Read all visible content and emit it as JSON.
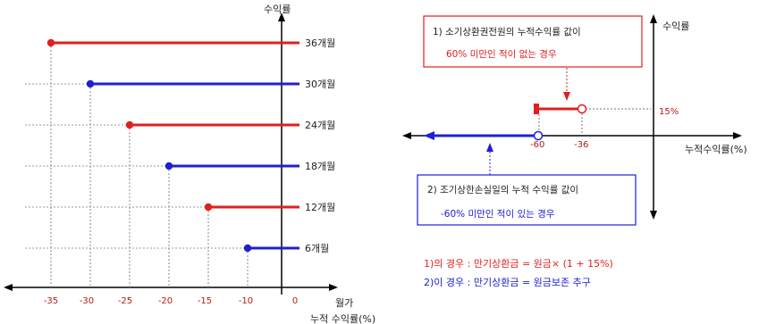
{
  "left_chart": {
    "y_axis_label": "수익률",
    "x_axis_label_line1": "월가",
    "x_axis_label_line2": "누적 수익률(%)",
    "x_ticks": [
      "-35",
      "-30",
      "-25",
      "-20",
      "-15",
      "-10",
      "0"
    ],
    "zero_label": "0",
    "bars": [
      {
        "label": "36개월",
        "start": -35,
        "color": "#e02020"
      },
      {
        "label": "30개월",
        "start": -30,
        "color": "#2020d0"
      },
      {
        "label": "24개월",
        "start": -25,
        "color": "#e02020"
      },
      {
        "label": "18개월",
        "start": -20,
        "color": "#2020d0"
      },
      {
        "label": "12개월",
        "start": -15,
        "color": "#e02020"
      },
      {
        "label": "6개월",
        "start": -10,
        "color": "#2020d0"
      }
    ]
  },
  "right_diagram": {
    "y_axis_label": "수익률",
    "x_axis_label": "누적수익률(%)",
    "label_15": "15%",
    "label_neg60": "-60",
    "label_neg36": "-36",
    "box1_line1": "1) 소기상환권전원의 누적수익률 값이",
    "box1_line2": "60% 미만인 적이 없는 경우",
    "box2_line1": "2) 조기상한손실일의 누적 수익률 값이",
    "box2_line2": "-60% 미만인 적이 있는 경우",
    "legend_1": "1)의 경우 : 만기상환금 = 원금× (1 + 15%)",
    "legend_2": "2)이 경우 : 만기상환금 = 원금보존 추구",
    "colors": {
      "red": "#e02020",
      "blue": "#2020d0"
    }
  }
}
